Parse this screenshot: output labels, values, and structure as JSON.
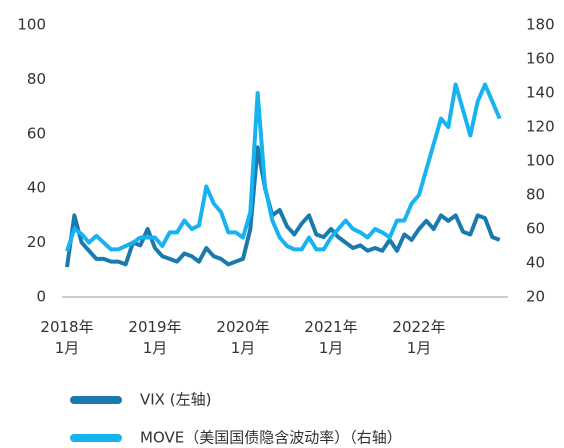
{
  "chart_data": {
    "type": "line",
    "x": [
      "2018-01",
      "2018-02",
      "2018-03",
      "2018-04",
      "2018-05",
      "2018-06",
      "2018-07",
      "2018-08",
      "2018-09",
      "2018-10",
      "2018-11",
      "2018-12",
      "2019-01",
      "2019-02",
      "2019-03",
      "2019-04",
      "2019-05",
      "2019-06",
      "2019-07",
      "2019-08",
      "2019-09",
      "2019-10",
      "2019-11",
      "2019-12",
      "2020-01",
      "2020-02",
      "2020-03",
      "2020-04",
      "2020-05",
      "2020-06",
      "2020-07",
      "2020-08",
      "2020-09",
      "2020-10",
      "2020-11",
      "2020-12",
      "2021-01",
      "2021-02",
      "2021-03",
      "2021-04",
      "2021-05",
      "2021-06",
      "2021-07",
      "2021-08",
      "2021-09",
      "2021-10",
      "2021-11",
      "2021-12",
      "2022-01",
      "2022-02",
      "2022-03",
      "2022-04",
      "2022-05",
      "2022-06",
      "2022-07",
      "2022-08",
      "2022-09",
      "2022-10",
      "2022-11",
      "2022-12"
    ],
    "series": [
      {
        "name": "VIX (左轴)",
        "color": "#1a7aad",
        "axis": "y",
        "values": [
          11,
          30,
          20,
          17,
          14,
          14,
          13,
          13,
          12,
          20,
          19,
          25,
          18,
          15,
          14,
          13,
          16,
          15,
          13,
          18,
          15,
          14,
          12,
          13,
          14,
          25,
          55,
          40,
          30,
          32,
          26,
          23,
          27,
          30,
          23,
          22,
          25,
          22,
          20,
          18,
          19,
          17,
          18,
          17,
          21,
          17,
          23,
          21,
          25,
          28,
          25,
          30,
          28,
          30,
          24,
          23,
          30,
          29,
          22,
          21
        ]
      },
      {
        "name": "MOVE（美国国债隐含波动率）（右轴）",
        "color": "#17b3f0",
        "axis": "y2",
        "values": [
          47,
          60,
          57,
          52,
          56,
          52,
          48,
          48,
          50,
          52,
          55,
          55,
          55,
          50,
          58,
          58,
          65,
          60,
          62,
          85,
          75,
          70,
          58,
          58,
          55,
          70,
          140,
          85,
          65,
          55,
          50,
          48,
          48,
          55,
          48,
          48,
          55,
          60,
          65,
          60,
          58,
          55,
          60,
          58,
          55,
          65,
          65,
          75,
          80,
          95,
          110,
          125,
          120,
          145,
          130,
          115,
          135,
          145,
          135,
          125
        ]
      }
    ],
    "xticks": [
      {
        "value": "2018-01",
        "label": "2018年\n1月"
      },
      {
        "value": "2019-01",
        "label": "2019年\n1月"
      },
      {
        "value": "2020-01",
        "label": "2020年\n1月"
      },
      {
        "value": "2021-01",
        "label": "2021年\n1月"
      },
      {
        "value": "2022-01",
        "label": "2022年\n1月"
      }
    ],
    "ylim": [
      0,
      100
    ],
    "yticks": [
      0,
      20,
      40,
      60,
      80,
      100
    ],
    "y2lim": [
      20,
      180
    ],
    "y2ticks": [
      20,
      40,
      60,
      80,
      100,
      120,
      140,
      160,
      180
    ]
  }
}
